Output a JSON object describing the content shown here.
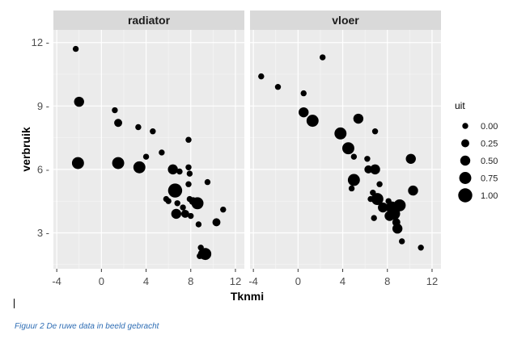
{
  "caption": "Figuur 2 De ruwe data in beeld gebracht",
  "chart_data": {
    "type": "scatter",
    "xlabel": "Tknmi",
    "ylabel": "verbruik",
    "xlim": [
      -4.3,
      12.8
    ],
    "ylim": [
      1.3,
      12.6
    ],
    "x_ticks": [
      -4,
      0,
      4,
      8,
      12
    ],
    "x_tick_labels": [
      "-4",
      "0",
      "4",
      "8",
      "12"
    ],
    "y_ticks": [
      3,
      6,
      9,
      12
    ],
    "y_tick_labels": [
      "3 -",
      "6 -",
      "9 -",
      "12 -"
    ],
    "grid": true,
    "panel_background": "#ebebeb",
    "strip_background": "#d9d9d9",
    "point_color": "#000000",
    "size_legend": {
      "title": "uit",
      "placement": "right",
      "levels": [
        {
          "value": 0.0,
          "label": "0.00"
        },
        {
          "value": 0.25,
          "label": "0.25"
        },
        {
          "value": 0.5,
          "label": "0.50"
        },
        {
          "value": 0.75,
          "label": "0.75"
        },
        {
          "value": 1.0,
          "label": "1.00"
        }
      ]
    },
    "facets": [
      {
        "name": "radiator",
        "points": [
          {
            "x": -2.3,
            "y": 11.7,
            "uit": 0.0
          },
          {
            "x": -2.0,
            "y": 9.2,
            "uit": 0.5
          },
          {
            "x": -2.1,
            "y": 6.3,
            "uit": 0.75
          },
          {
            "x": 1.2,
            "y": 8.8,
            "uit": 0.0
          },
          {
            "x": 1.5,
            "y": 8.2,
            "uit": 0.25
          },
          {
            "x": 1.5,
            "y": 6.3,
            "uit": 0.75
          },
          {
            "x": 3.3,
            "y": 8.0,
            "uit": 0.0
          },
          {
            "x": 3.4,
            "y": 6.1,
            "uit": 0.75
          },
          {
            "x": 4.0,
            "y": 6.6,
            "uit": 0.0
          },
          {
            "x": 4.6,
            "y": 7.8,
            "uit": 0.0
          },
          {
            "x": 5.4,
            "y": 6.8,
            "uit": 0.0
          },
          {
            "x": 5.8,
            "y": 4.6,
            "uit": 0.0
          },
          {
            "x": 6.0,
            "y": 4.5,
            "uit": 0.0
          },
          {
            "x": 6.4,
            "y": 6.0,
            "uit": 0.5
          },
          {
            "x": 6.6,
            "y": 5.0,
            "uit": 1.0
          },
          {
            "x": 6.7,
            "y": 3.9,
            "uit": 0.5
          },
          {
            "x": 6.8,
            "y": 4.4,
            "uit": 0.0
          },
          {
            "x": 7.0,
            "y": 5.9,
            "uit": 0.0
          },
          {
            "x": 7.3,
            "y": 4.2,
            "uit": 0.0
          },
          {
            "x": 7.5,
            "y": 3.9,
            "uit": 0.25
          },
          {
            "x": 7.8,
            "y": 7.4,
            "uit": 0.0
          },
          {
            "x": 7.8,
            "y": 6.1,
            "uit": 0.0
          },
          {
            "x": 7.9,
            "y": 5.8,
            "uit": 0.0
          },
          {
            "x": 7.9,
            "y": 4.6,
            "uit": 0.0
          },
          {
            "x": 7.8,
            "y": 5.3,
            "uit": 0.0
          },
          {
            "x": 8.0,
            "y": 3.8,
            "uit": 0.0
          },
          {
            "x": 8.2,
            "y": 4.5,
            "uit": 0.25
          },
          {
            "x": 8.6,
            "y": 4.4,
            "uit": 0.75
          },
          {
            "x": 8.7,
            "y": 3.4,
            "uit": 0.0
          },
          {
            "x": 8.9,
            "y": 2.3,
            "uit": 0.0
          },
          {
            "x": 8.8,
            "y": 1.9,
            "uit": 0.0
          },
          {
            "x": 9.1,
            "y": 2.0,
            "uit": 0.5
          },
          {
            "x": 9.3,
            "y": 2.0,
            "uit": 0.75
          },
          {
            "x": 9.5,
            "y": 5.4,
            "uit": 0.0
          },
          {
            "x": 10.3,
            "y": 3.5,
            "uit": 0.25
          },
          {
            "x": 10.9,
            "y": 4.1,
            "uit": 0.0
          }
        ]
      },
      {
        "name": "vloer",
        "points": [
          {
            "x": -3.3,
            "y": 10.4,
            "uit": 0.0
          },
          {
            "x": -1.8,
            "y": 9.9,
            "uit": 0.0
          },
          {
            "x": 0.5,
            "y": 9.6,
            "uit": 0.0
          },
          {
            "x": 0.5,
            "y": 8.7,
            "uit": 0.5
          },
          {
            "x": 1.3,
            "y": 8.3,
            "uit": 0.75
          },
          {
            "x": 2.2,
            "y": 11.3,
            "uit": 0.0
          },
          {
            "x": 3.8,
            "y": 7.7,
            "uit": 0.75
          },
          {
            "x": 4.5,
            "y": 7.0,
            "uit": 0.75
          },
          {
            "x": 4.8,
            "y": 5.1,
            "uit": 0.0
          },
          {
            "x": 5.0,
            "y": 6.6,
            "uit": 0.0
          },
          {
            "x": 5.0,
            "y": 5.5,
            "uit": 0.75
          },
          {
            "x": 5.4,
            "y": 8.4,
            "uit": 0.5
          },
          {
            "x": 6.2,
            "y": 6.5,
            "uit": 0.0
          },
          {
            "x": 6.3,
            "y": 6.0,
            "uit": 0.25
          },
          {
            "x": 6.5,
            "y": 4.6,
            "uit": 0.0
          },
          {
            "x": 6.7,
            "y": 4.9,
            "uit": 0.0
          },
          {
            "x": 6.8,
            "y": 3.7,
            "uit": 0.0
          },
          {
            "x": 6.9,
            "y": 7.8,
            "uit": 0.0
          },
          {
            "x": 6.9,
            "y": 6.0,
            "uit": 0.5
          },
          {
            "x": 7.1,
            "y": 4.6,
            "uit": 0.75
          },
          {
            "x": 7.3,
            "y": 5.3,
            "uit": 0.0
          },
          {
            "x": 7.6,
            "y": 4.2,
            "uit": 0.5
          },
          {
            "x": 8.1,
            "y": 4.5,
            "uit": 0.0
          },
          {
            "x": 8.2,
            "y": 3.8,
            "uit": 0.5
          },
          {
            "x": 8.4,
            "y": 4.2,
            "uit": 0.75
          },
          {
            "x": 8.6,
            "y": 3.9,
            "uit": 0.75
          },
          {
            "x": 8.8,
            "y": 3.5,
            "uit": 0.25
          },
          {
            "x": 8.9,
            "y": 3.2,
            "uit": 0.5
          },
          {
            "x": 9.1,
            "y": 4.3,
            "uit": 0.75
          },
          {
            "x": 9.3,
            "y": 2.6,
            "uit": 0.0
          },
          {
            "x": 10.1,
            "y": 6.5,
            "uit": 0.5
          },
          {
            "x": 10.3,
            "y": 5.0,
            "uit": 0.5
          },
          {
            "x": 11.0,
            "y": 2.3,
            "uit": 0.0
          }
        ]
      }
    ]
  }
}
